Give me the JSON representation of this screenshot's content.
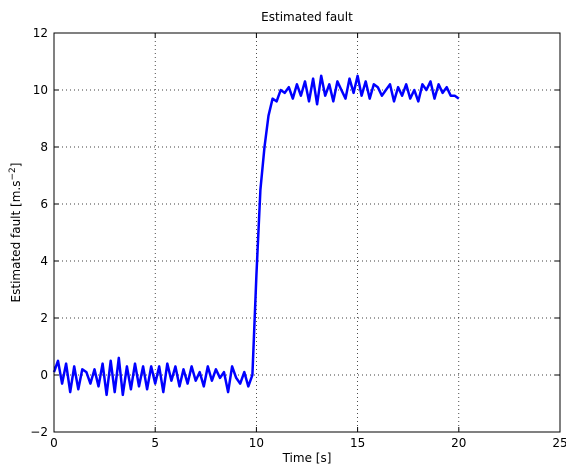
{
  "chart_data": {
    "type": "line",
    "title": "Estimated fault",
    "xlabel": "Time [s]",
    "ylabel_main": "Estimated fault [m.s",
    "ylabel_sup": "−2",
    "ylabel_end": "]",
    "xlim": [
      0,
      25
    ],
    "ylim": [
      -2,
      12
    ],
    "xticks": [
      0,
      5,
      10,
      15,
      20,
      25
    ],
    "yticks": [
      -2,
      0,
      2,
      4,
      6,
      8,
      10,
      12
    ],
    "xtick_labels": [
      "0",
      "5",
      "10",
      "15",
      "20",
      "25"
    ],
    "ytick_labels": [
      "−2",
      "0",
      "2",
      "4",
      "6",
      "8",
      "10",
      "12"
    ],
    "grid": true,
    "color": "#0000ff",
    "series": [
      {
        "x": [
          0,
          0.2,
          0.4,
          0.6,
          0.8,
          1.0,
          1.2,
          1.4,
          1.6,
          1.8,
          2.0,
          2.2,
          2.4,
          2.6,
          2.8,
          3.0,
          3.2,
          3.4,
          3.6,
          3.8,
          4.0,
          4.2,
          4.4,
          4.6,
          4.8,
          5.0,
          5.2,
          5.4,
          5.6,
          5.8,
          6.0,
          6.2,
          6.4,
          6.6,
          6.8,
          7.0,
          7.2,
          7.4,
          7.6,
          7.8,
          8.0,
          8.2,
          8.4,
          8.6,
          8.8,
          9.0,
          9.2,
          9.4,
          9.6,
          9.8,
          10.0,
          10.2,
          10.4,
          10.6,
          10.8,
          11.0,
          11.2,
          11.4,
          11.6,
          11.8,
          12.0,
          12.2,
          12.4,
          12.6,
          12.8,
          13.0,
          13.2,
          13.4,
          13.6,
          13.8,
          14.0,
          14.2,
          14.4,
          14.6,
          14.8,
          15.0,
          15.2,
          15.4,
          15.6,
          15.8,
          16.0,
          16.2,
          16.4,
          16.6,
          16.8,
          17.0,
          17.2,
          17.4,
          17.6,
          17.8,
          18.0,
          18.2,
          18.4,
          18.6,
          18.8,
          19.0,
          19.2,
          19.4,
          19.6,
          19.8,
          20.0
        ],
        "y": [
          0.1,
          0.5,
          -0.3,
          0.4,
          -0.6,
          0.3,
          -0.5,
          0.2,
          0.1,
          -0.3,
          0.2,
          -0.4,
          0.4,
          -0.7,
          0.5,
          -0.6,
          0.6,
          -0.7,
          0.3,
          -0.5,
          0.4,
          -0.4,
          0.3,
          -0.5,
          0.3,
          -0.3,
          0.3,
          -0.6,
          0.4,
          -0.2,
          0.3,
          -0.4,
          0.2,
          -0.3,
          0.3,
          -0.2,
          0.1,
          -0.4,
          0.3,
          -0.2,
          0.2,
          -0.1,
          0.1,
          -0.6,
          0.3,
          -0.1,
          -0.3,
          0.1,
          -0.4,
          0.0,
          3.5,
          6.5,
          8.0,
          9.1,
          9.7,
          9.6,
          10.0,
          9.9,
          10.1,
          9.7,
          10.2,
          9.8,
          10.3,
          9.6,
          10.4,
          9.5,
          10.5,
          9.8,
          10.2,
          9.6,
          10.3,
          10.0,
          9.7,
          10.4,
          9.9,
          10.5,
          9.8,
          10.3,
          9.7,
          10.2,
          10.1,
          9.8,
          10.0,
          10.2,
          9.6,
          10.1,
          9.8,
          10.2,
          9.7,
          10.0,
          9.6,
          10.2,
          10.0,
          10.3,
          9.7,
          10.2,
          9.9,
          10.1,
          9.8,
          9.8,
          9.7
        ]
      }
    ]
  }
}
